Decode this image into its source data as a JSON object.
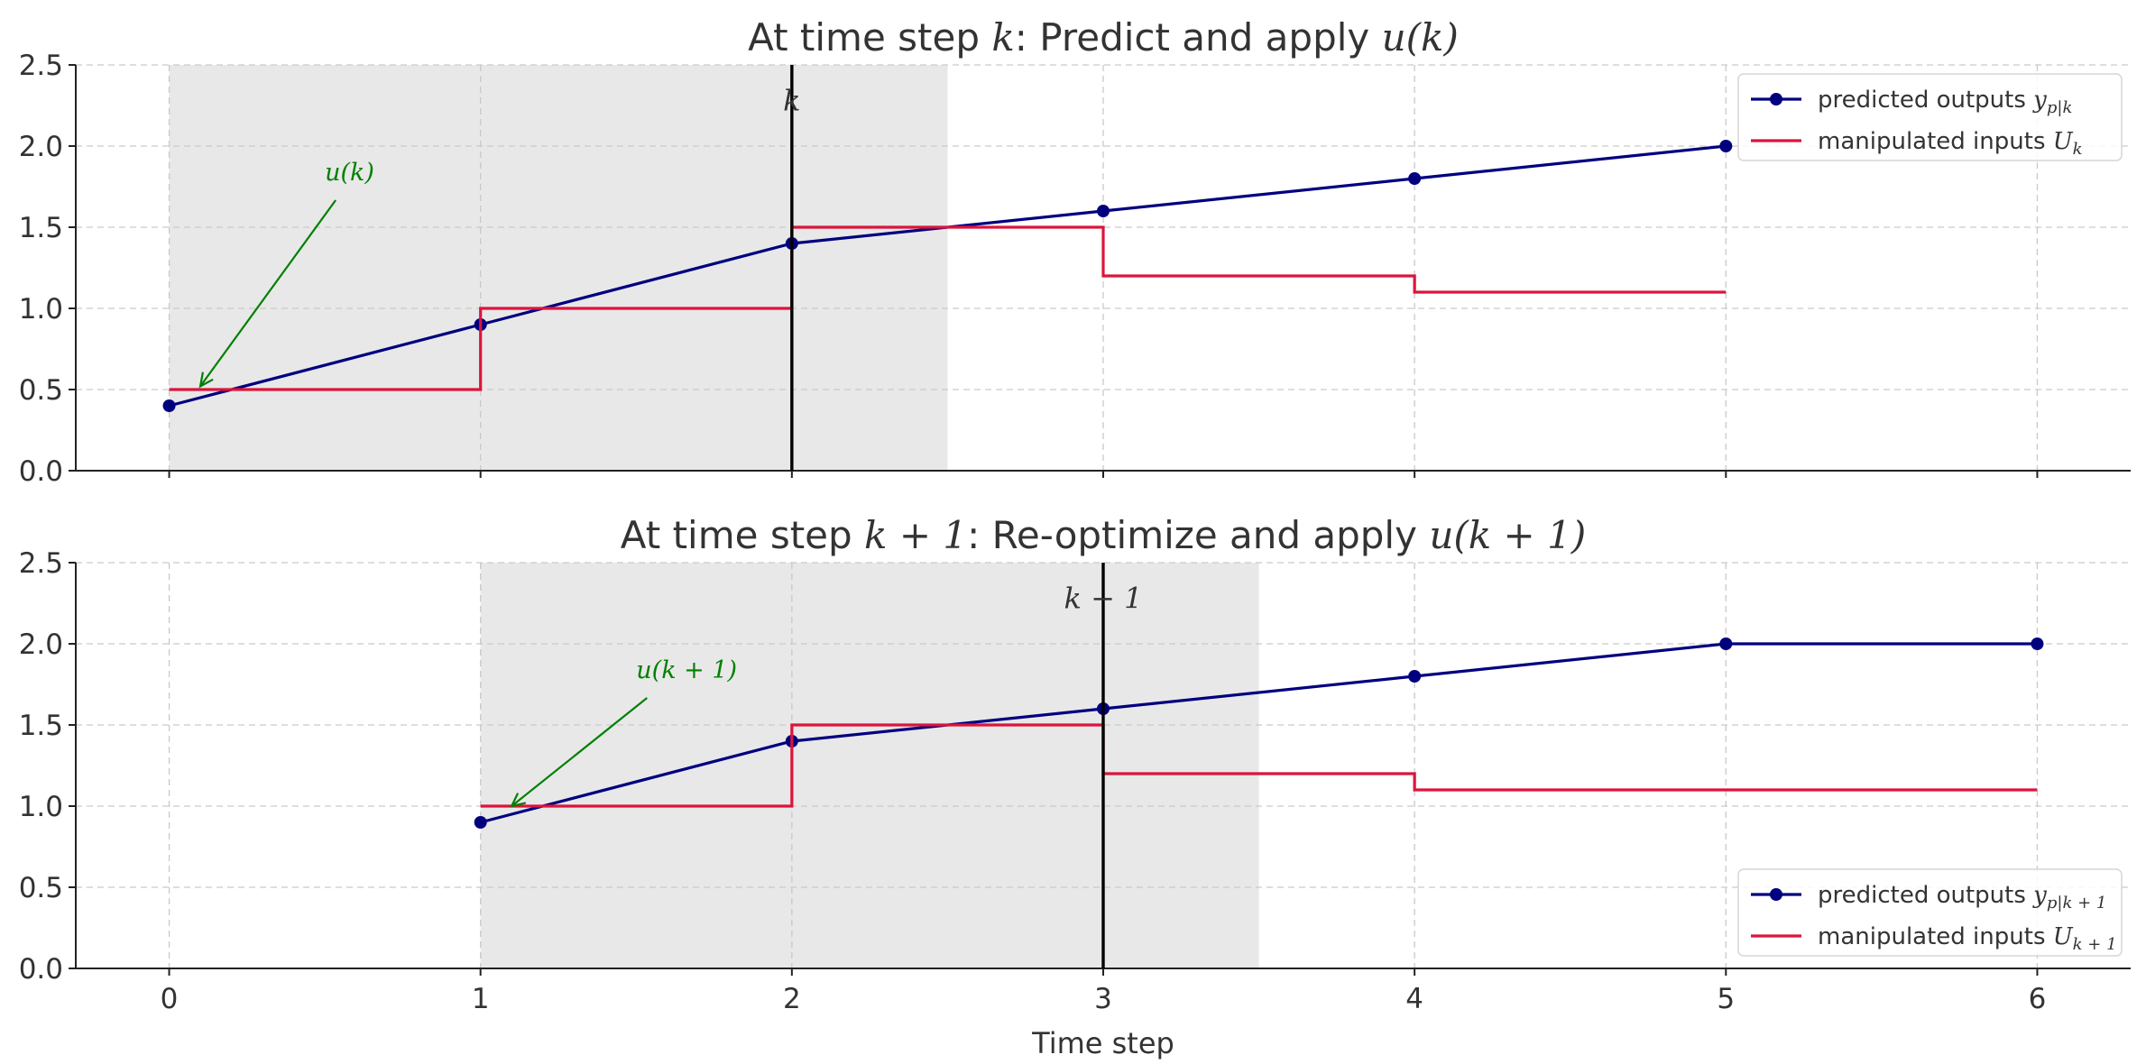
{
  "chart_data": [
    {
      "type": "line",
      "title_prefix": "At time step ",
      "title_var": "k",
      "title_suffix": ": Predict and apply ",
      "title_math": "u(k)",
      "xlim": [
        -0.3,
        6.3
      ],
      "ylim": [
        0.0,
        2.5
      ],
      "xticks": [
        0,
        1,
        2,
        3,
        4,
        5,
        6
      ],
      "xtick_labels": [],
      "yticks": [
        0.0,
        0.5,
        1.0,
        1.5,
        2.0,
        2.5
      ],
      "ytick_labels": [
        "0.0",
        "0.5",
        "1.0",
        "1.5",
        "2.0",
        "2.5"
      ],
      "grid": true,
      "shaded_region": [
        0,
        2.5
      ],
      "marker_line": {
        "x": 2,
        "label": "k"
      },
      "annotation": {
        "text": "u(k)",
        "text_x": 0.5,
        "text_y": 1.8,
        "arrow_x": 0.1,
        "arrow_y": 0.52,
        "color": "#008000"
      },
      "legend_position": "top-right",
      "series": [
        {
          "name": "predicted outputs",
          "name_math": "y",
          "name_sub": "p|k",
          "kind": "line-marker",
          "color": "#00007f",
          "x": [
            0,
            1,
            2,
            3,
            4,
            5
          ],
          "y": [
            0.4,
            0.9,
            1.4,
            1.6,
            1.8,
            2.0
          ]
        },
        {
          "name": "manipulated inputs",
          "name_math": "U",
          "name_sub": "k",
          "kind": "step",
          "color": "#dc143c",
          "x": [
            0,
            1,
            2,
            3,
            4,
            5
          ],
          "y": [
            0.5,
            1.0,
            1.5,
            1.2,
            1.1,
            1.1
          ]
        }
      ]
    },
    {
      "type": "line",
      "title_prefix": "At time step ",
      "title_var": "k + 1",
      "title_suffix": ": Re-optimize and apply ",
      "title_math": "u(k + 1)",
      "xlim": [
        -0.3,
        6.3
      ],
      "ylim": [
        0.0,
        2.5
      ],
      "xticks": [
        0,
        1,
        2,
        3,
        4,
        5,
        6
      ],
      "xtick_labels": [
        "0",
        "1",
        "2",
        "3",
        "4",
        "5",
        "6"
      ],
      "xlabel": "Time step",
      "yticks": [
        0.0,
        0.5,
        1.0,
        1.5,
        2.0,
        2.5
      ],
      "ytick_labels": [
        "0.0",
        "0.5",
        "1.0",
        "1.5",
        "2.0",
        "2.5"
      ],
      "grid": true,
      "shaded_region": [
        1,
        3.5
      ],
      "marker_line": {
        "x": 3,
        "label": "k − 1"
      },
      "annotation": {
        "text": "u(k + 1)",
        "text_x": 1.5,
        "text_y": 1.8,
        "arrow_x": 1.1,
        "arrow_y": 1.0,
        "color": "#008000"
      },
      "legend_position": "bottom-right",
      "series": [
        {
          "name": "predicted outputs",
          "name_math": "y",
          "name_sub": "p|k + 1",
          "kind": "line-marker",
          "color": "#00007f",
          "x": [
            1,
            2,
            3,
            4,
            5,
            6
          ],
          "y": [
            0.9,
            1.4,
            1.6,
            1.8,
            2.0,
            2.0
          ]
        },
        {
          "name": "manipulated inputs",
          "name_math": "U",
          "name_sub": "k + 1",
          "kind": "step",
          "color": "#dc143c",
          "x": [
            1,
            2,
            3,
            4,
            5,
            6
          ],
          "y": [
            1.0,
            1.5,
            1.2,
            1.1,
            1.1,
            1.1
          ]
        }
      ]
    }
  ]
}
